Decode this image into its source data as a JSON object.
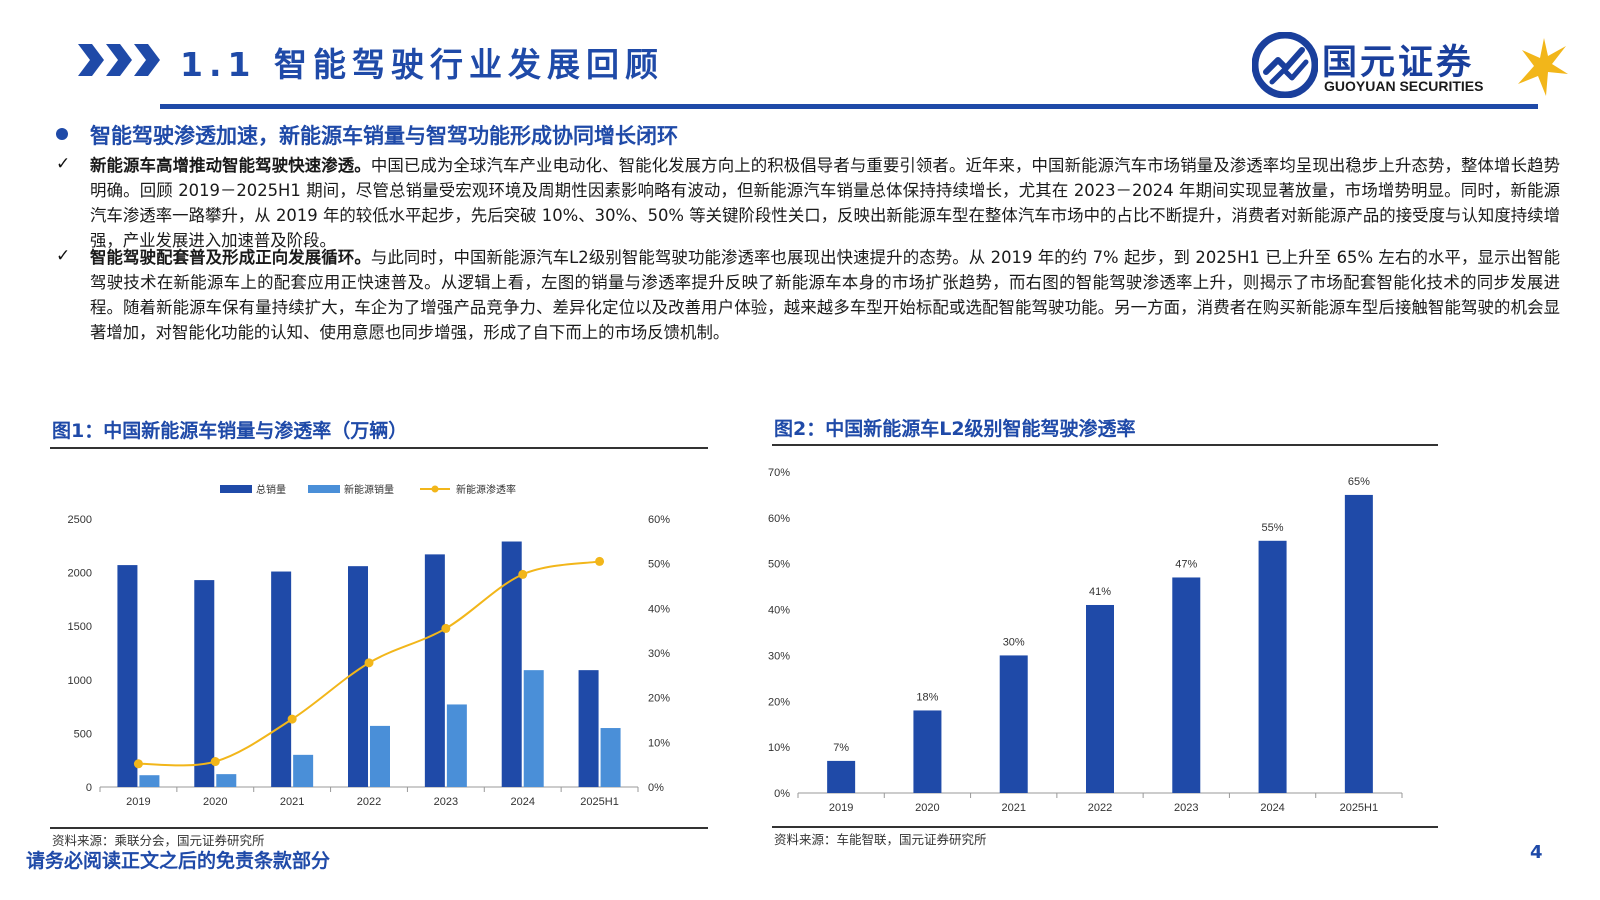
{
  "header": {
    "section_title": "1.1  智能驾驶行业发展回顾",
    "logo_cn": "国元证券",
    "logo_en": "GUOYUAN SECURITIES"
  },
  "summary": {
    "heading": "智能驾驶渗透加速，新能源车销量与智驾功能形成协同增长闭环",
    "p1_bold": "新能源车高增推动智能驾驶快速渗透。",
    "p1_text": "中国已成为全球汽车产业电动化、智能化发展方向上的积极倡导者与重要引领者。近年来，中国新能源汽车市场销量及渗透率均呈现出稳步上升态势，整体增长趋势明确。回顾 2019－2025H1 期间，尽管总销量受宏观环境及周期性因素影响略有波动，但新能源汽车销量总体保持持续增长，尤其在 2023－2024 年期间实现显著放量，市场增势明显。同时，新能源汽车渗透率一路攀升，从 2019 年的较低水平起步，先后突破 10%、30%、50% 等关键阶段性关口，反映出新能源车型在整体汽车市场中的占比不断提升，消费者对新能源产品的接受度与认知度持续增强，产业发展进入加速普及阶段。",
    "p2_bold": "智能驾驶配套普及形成正向发展循环。",
    "p2_text": "与此同时，中国新能源汽车L2级别智能驾驶功能渗透率也展现出快速提升的态势。从 2019 年的约 7% 起步，到 2025H1 已上升至 65% 左右的水平，显示出智能驾驶技术在新能源车上的配套应用正快速普及。从逻辑上看，左图的销量与渗透率提升反映了新能源车本身的市场扩张趋势，而右图的智能驾驶渗透率上升，则揭示了市场配套智能化技术的同步发展进程。随着新能源车保有量持续扩大，车企为了增强产品竞争力、差异化定位以及改善用户体验，越来越多车型开始标配或选配智能驾驶功能。另一方面，消费者在购买新能源车型后接触智能驾驶的机会显著增加，对智能化功能的认知、使用意愿也同步增强，形成了自下而上的市场反馈机制。",
    "check_mark": "✓"
  },
  "figures": {
    "fig1_title": "图1：中国新能源车销量与渗透率（万辆）",
    "fig1_source": "资料来源：乘联分会，国元证券研究所",
    "fig2_title": "图2：中国新能源车L2级别智能驾驶渗透率",
    "fig2_source": "资料来源：车能智联，国元证券研究所"
  },
  "footer": {
    "disclaimer": "请务必阅读正文之后的免责条款部分",
    "page_number": "4"
  },
  "colors": {
    "brand_blue": "#1f4aa8",
    "bar_dark": "#1f4aa8",
    "bar_light": "#4a8fd8",
    "line_gold": "#f2b61a"
  },
  "chart_data": [
    {
      "type": "bar",
      "title": "",
      "categories": [
        "2019",
        "2020",
        "2021",
        "2022",
        "2023",
        "2024",
        "2025H1"
      ],
      "series": [
        {
          "name": "总销量",
          "type": "bar",
          "axis": "left",
          "values": [
            2070,
            1930,
            2010,
            2060,
            2170,
            2290,
            1090
          ]
        },
        {
          "name": "新能源销量",
          "type": "bar",
          "axis": "left",
          "values": [
            110,
            120,
            300,
            570,
            770,
            1090,
            550
          ]
        },
        {
          "name": "新能源渗透率",
          "type": "line",
          "axis": "right",
          "values": [
            5.2,
            5.7,
            15.2,
            27.8,
            35.5,
            47.6,
            50.5
          ]
        }
      ],
      "ylim": [
        0,
        2500
      ],
      "yticks": [
        "0",
        "500",
        "1000",
        "1500",
        "2000",
        "2500"
      ],
      "y2lim": [
        0,
        60
      ],
      "y2ticks": [
        "0%",
        "10%",
        "20%",
        "30%",
        "40%",
        "50%",
        "60%"
      ],
      "legend": "top"
    },
    {
      "type": "bar",
      "title": "",
      "categories": [
        "2019",
        "2020",
        "2021",
        "2022",
        "2023",
        "2024",
        "2025H1"
      ],
      "values": [
        7,
        18,
        30,
        41,
        47,
        55,
        65
      ],
      "labels": [
        "7%",
        "18%",
        "30%",
        "41%",
        "47%",
        "55%",
        "65%"
      ],
      "ylim": [
        0,
        70
      ],
      "yticks": [
        "0%",
        "10%",
        "20%",
        "30%",
        "40%",
        "50%",
        "60%",
        "70%"
      ]
    }
  ]
}
